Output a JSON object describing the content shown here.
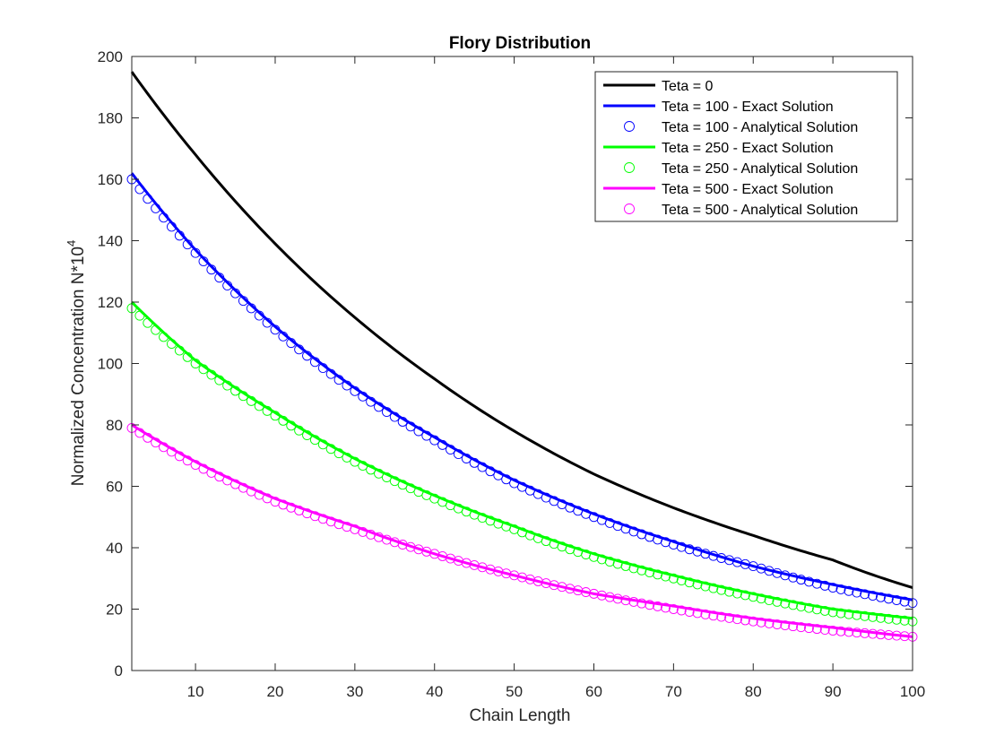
{
  "chart_data": {
    "type": "line",
    "title": "Flory Distribution",
    "xlabel": "Chain Length",
    "ylabel_main": "Normalized Concentration N*10",
    "ylabel_sup": "4",
    "xlim": [
      2,
      100
    ],
    "ylim": [
      0,
      200
    ],
    "xticks": [
      10,
      20,
      30,
      40,
      50,
      60,
      70,
      80,
      90,
      100
    ],
    "yticks": [
      0,
      20,
      40,
      60,
      80,
      100,
      120,
      140,
      160,
      180,
      200
    ],
    "grid": false,
    "legend_position": "top-right",
    "series": [
      {
        "name": "Teta = 0",
        "style": "line",
        "color": "#000000",
        "x": [
          2,
          10,
          20,
          30,
          40,
          50,
          60,
          70,
          80,
          90,
          100
        ],
        "y": [
          195,
          168,
          139,
          115,
          95,
          78,
          64,
          53,
          44,
          36,
          27
        ]
      },
      {
        "name": "Teta = 100 - Exact Solution",
        "style": "line",
        "color": "#0000ff",
        "x": [
          2,
          10,
          20,
          30,
          40,
          50,
          60,
          70,
          80,
          90,
          100
        ],
        "y": [
          162,
          137,
          112,
          92,
          76,
          62,
          51,
          42,
          34,
          28,
          23
        ]
      },
      {
        "name": "Teta = 100 - Analytical Solution",
        "style": "markers",
        "color": "#0000ff",
        "x": [
          2,
          10,
          20,
          30,
          40,
          50,
          60,
          70,
          80,
          90,
          100
        ],
        "y": [
          160,
          136,
          111,
          91,
          75,
          61,
          50,
          41,
          34,
          27,
          22
        ]
      },
      {
        "name": "Teta = 250 - Exact Solution",
        "style": "line",
        "color": "#00ff00",
        "x": [
          2,
          10,
          20,
          30,
          40,
          50,
          60,
          70,
          80,
          90,
          100
        ],
        "y": [
          120,
          101,
          84,
          69,
          57,
          47,
          38,
          31,
          25,
          20,
          17
        ]
      },
      {
        "name": "Teta = 250 - Analytical Solution",
        "style": "markers",
        "color": "#00ff00",
        "x": [
          2,
          10,
          20,
          30,
          40,
          50,
          60,
          70,
          80,
          90,
          100
        ],
        "y": [
          118,
          100,
          83,
          68,
          56,
          46,
          37,
          30,
          24,
          19,
          16
        ]
      },
      {
        "name": "Teta = 500 - Exact Solution",
        "style": "line",
        "color": "#ff00ff",
        "x": [
          2,
          10,
          20,
          30,
          40,
          50,
          60,
          70,
          80,
          90,
          100
        ],
        "y": [
          80,
          68,
          56,
          47,
          38,
          31,
          25,
          21,
          17,
          14,
          11
        ]
      },
      {
        "name": "Teta = 500 - Analytical Solution",
        "style": "markers",
        "color": "#ff00ff",
        "x": [
          2,
          10,
          20,
          30,
          40,
          50,
          60,
          70,
          80,
          90,
          100
        ],
        "y": [
          79,
          67,
          55,
          46,
          38,
          31,
          25,
          20,
          16,
          13,
          11
        ]
      }
    ]
  }
}
